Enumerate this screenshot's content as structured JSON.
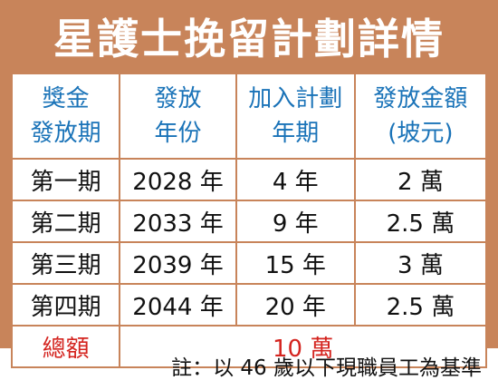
{
  "title": "星護士挽留計劃詳情",
  "headers": [
    [
      "獎金",
      "發放期"
    ],
    [
      "發放",
      "年份"
    ],
    [
      "加入計劃",
      "年期"
    ],
    [
      "發放金額",
      "(坡元)"
    ]
  ],
  "rows": [
    [
      "第一期",
      "2028 年",
      "4 年",
      "2 萬"
    ],
    [
      "第二期",
      "2033 年",
      "9 年",
      "2.5 萬"
    ],
    [
      "第三期",
      "2039 年",
      "15 年",
      "3 萬"
    ],
    [
      "第四期",
      "2044 年",
      "20 年",
      "2.5 萬"
    ]
  ],
  "total": {
    "label": "總額",
    "value": "10 萬"
  },
  "note": "註：以 46 歲以下現職員工為基準",
  "colors": {
    "frame": "#c8845a",
    "header_text": "#1a73b8",
    "total_text": "#d4241f"
  }
}
